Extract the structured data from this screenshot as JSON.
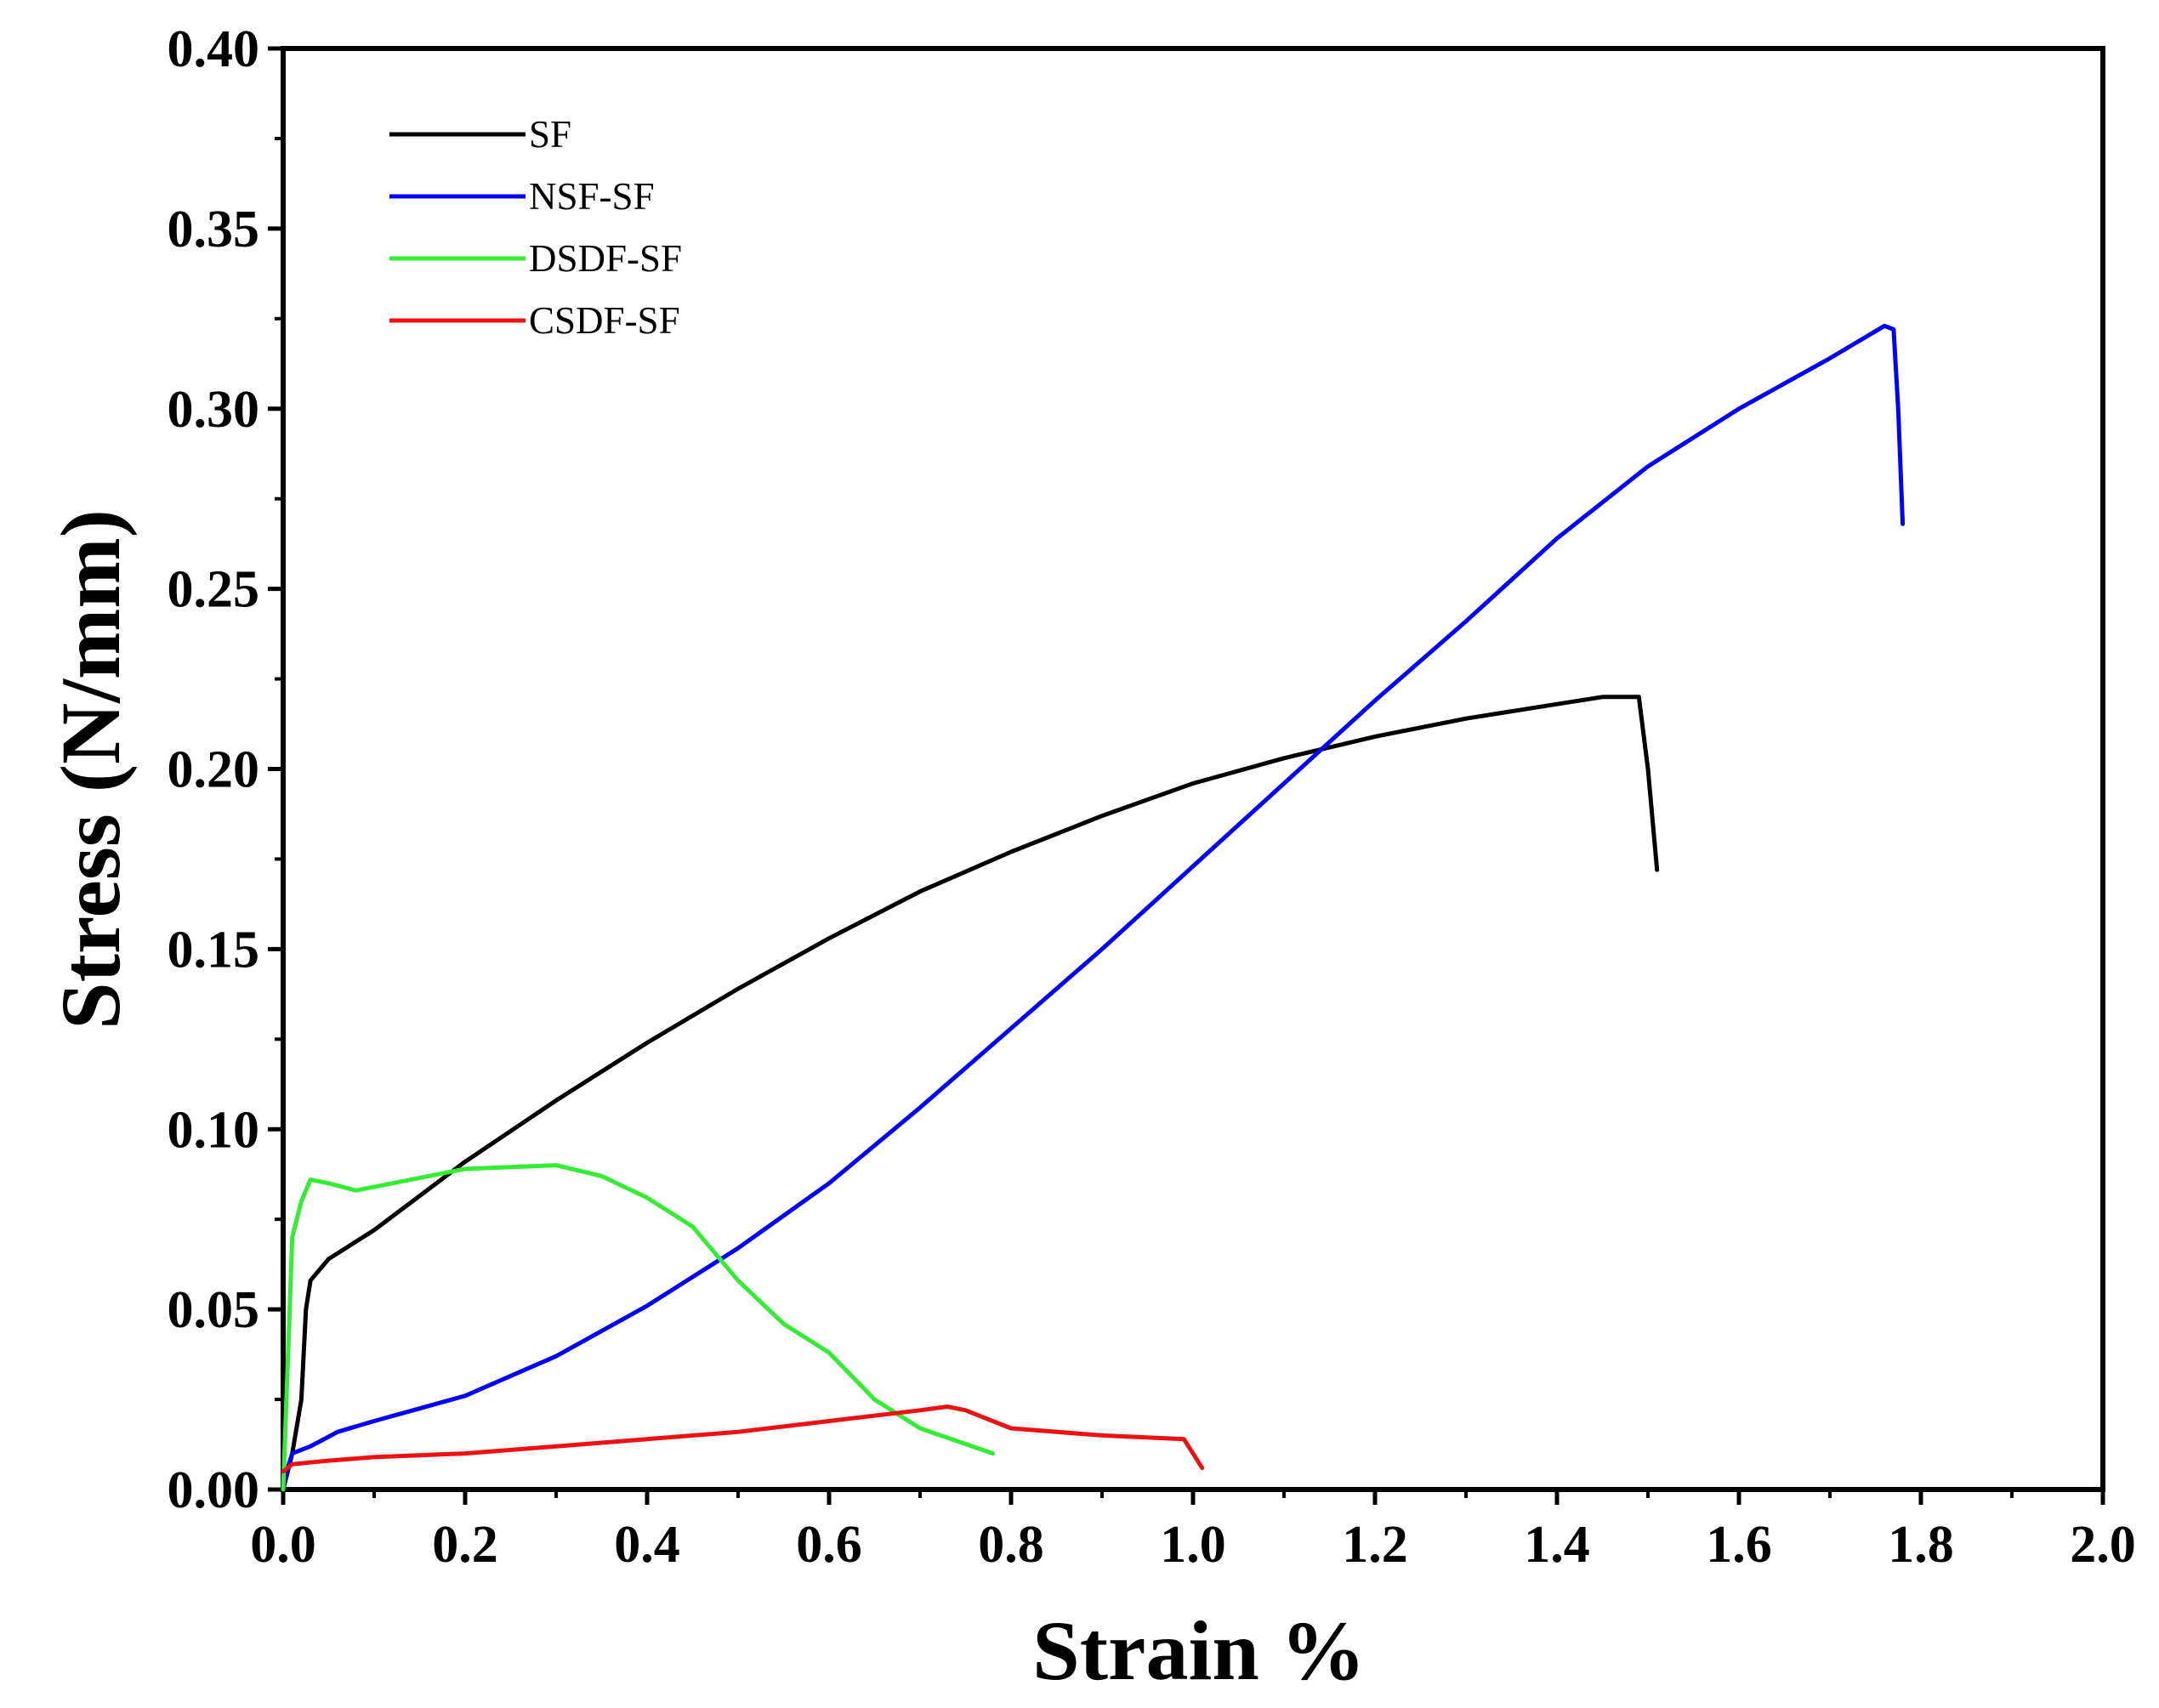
{
  "chart_data": {
    "type": "line",
    "title": "",
    "xlabel": "Strain %",
    "ylabel": "Stress (N/mm)",
    "xlim": [
      0.0,
      2.0
    ],
    "ylim": [
      0.0,
      0.4
    ],
    "xticks": [
      "0.0",
      "0.2",
      "0.4",
      "0.6",
      "0.8",
      "1.0",
      "1.2",
      "1.4",
      "1.6",
      "1.8",
      "2.0"
    ],
    "yticks": [
      "0.00",
      "0.05",
      "0.10",
      "0.15",
      "0.20",
      "0.25",
      "0.30",
      "0.35",
      "0.40"
    ],
    "grid": false,
    "legend_position": "top-left",
    "series": [
      {
        "name": "SF",
        "color": "#000000",
        "points": [
          [
            0.0,
            0.0
          ],
          [
            0.01,
            0.01
          ],
          [
            0.02,
            0.025
          ],
          [
            0.025,
            0.05
          ],
          [
            0.03,
            0.058
          ],
          [
            0.05,
            0.064
          ],
          [
            0.1,
            0.072
          ],
          [
            0.2,
            0.091
          ],
          [
            0.3,
            0.108
          ],
          [
            0.4,
            0.124
          ],
          [
            0.5,
            0.139
          ],
          [
            0.6,
            0.153
          ],
          [
            0.7,
            0.166
          ],
          [
            0.8,
            0.177
          ],
          [
            0.9,
            0.187
          ],
          [
            1.0,
            0.196
          ],
          [
            1.1,
            0.203
          ],
          [
            1.2,
            0.209
          ],
          [
            1.3,
            0.214
          ],
          [
            1.4,
            0.218
          ],
          [
            1.45,
            0.22
          ],
          [
            1.49,
            0.22
          ],
          [
            1.5,
            0.2
          ],
          [
            1.51,
            0.172
          ]
        ]
      },
      {
        "name": "NSF-SF",
        "color": "#0000ff",
        "points": [
          [
            0.0,
            0.0
          ],
          [
            0.005,
            0.006
          ],
          [
            0.01,
            0.01
          ],
          [
            0.03,
            0.012
          ],
          [
            0.06,
            0.016
          ],
          [
            0.1,
            0.019
          ],
          [
            0.2,
            0.026
          ],
          [
            0.3,
            0.037
          ],
          [
            0.4,
            0.051
          ],
          [
            0.5,
            0.067
          ],
          [
            0.6,
            0.085
          ],
          [
            0.7,
            0.106
          ],
          [
            0.8,
            0.128
          ],
          [
            0.9,
            0.15
          ],
          [
            1.0,
            0.173
          ],
          [
            1.1,
            0.196
          ],
          [
            1.2,
            0.219
          ],
          [
            1.3,
            0.241
          ],
          [
            1.4,
            0.264
          ],
          [
            1.5,
            0.284
          ],
          [
            1.6,
            0.3
          ],
          [
            1.7,
            0.314
          ],
          [
            1.76,
            0.323
          ],
          [
            1.77,
            0.322
          ],
          [
            1.775,
            0.3
          ],
          [
            1.78,
            0.268
          ]
        ]
      },
      {
        "name": "DSDF-SF",
        "color": "#33ee33",
        "points": [
          [
            0.0,
            0.0
          ],
          [
            0.005,
            0.035
          ],
          [
            0.01,
            0.07
          ],
          [
            0.02,
            0.08
          ],
          [
            0.03,
            0.086
          ],
          [
            0.05,
            0.085
          ],
          [
            0.08,
            0.083
          ],
          [
            0.12,
            0.085
          ],
          [
            0.2,
            0.089
          ],
          [
            0.3,
            0.09
          ],
          [
            0.35,
            0.087
          ],
          [
            0.4,
            0.081
          ],
          [
            0.45,
            0.073
          ],
          [
            0.5,
            0.058
          ],
          [
            0.55,
            0.046
          ],
          [
            0.6,
            0.038
          ],
          [
            0.65,
            0.025
          ],
          [
            0.7,
            0.017
          ],
          [
            0.78,
            0.01
          ]
        ]
      },
      {
        "name": "CSDF-SF",
        "color": "#ee1111",
        "points": [
          [
            0.0,
            0.005
          ],
          [
            0.01,
            0.007
          ],
          [
            0.05,
            0.008
          ],
          [
            0.1,
            0.009
          ],
          [
            0.2,
            0.01
          ],
          [
            0.3,
            0.012
          ],
          [
            0.4,
            0.014
          ],
          [
            0.5,
            0.016
          ],
          [
            0.6,
            0.019
          ],
          [
            0.7,
            0.022
          ],
          [
            0.73,
            0.023
          ],
          [
            0.75,
            0.022
          ],
          [
            0.8,
            0.017
          ],
          [
            0.9,
            0.015
          ],
          [
            0.99,
            0.014
          ],
          [
            1.0,
            0.01
          ],
          [
            1.01,
            0.006
          ]
        ]
      }
    ]
  }
}
